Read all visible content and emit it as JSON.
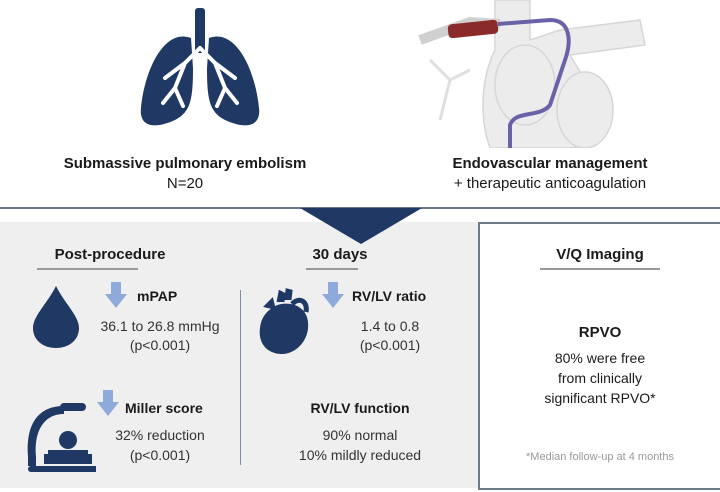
{
  "top": {
    "left_title": "Submassive pulmonary embolism",
    "left_sub": "N=20",
    "right_title": "Endovascular management",
    "right_sub": "+ therapeutic anticoagulation"
  },
  "post_procedure": {
    "heading": "Post-procedure",
    "mpap": {
      "label": "mPAP",
      "value": "36.1 to 26.8 mmHg",
      "p": "(p<0.001)"
    },
    "miller": {
      "label": "Miller score",
      "value": "32% reduction",
      "p": "(p<0.001)"
    }
  },
  "days30": {
    "heading": "30 days",
    "ratio": {
      "label": "RV/LV ratio",
      "value": "1.4 to 0.8",
      "p": "(p<0.001)"
    },
    "function": {
      "label": "RV/LV function",
      "line1": "90% normal",
      "line2": "10% mildly reduced"
    }
  },
  "vq": {
    "heading": "V/Q Imaging",
    "title": "RPVO",
    "line1": "80% were free",
    "line2": "from clinically",
    "line3": "significant RPVO*",
    "footnote": "*Median follow-up at 4 months"
  },
  "colors": {
    "navy": "#1f3864",
    "arrow": "#8eaadb",
    "panel": "#efefef",
    "border": "#6d7a8c"
  }
}
